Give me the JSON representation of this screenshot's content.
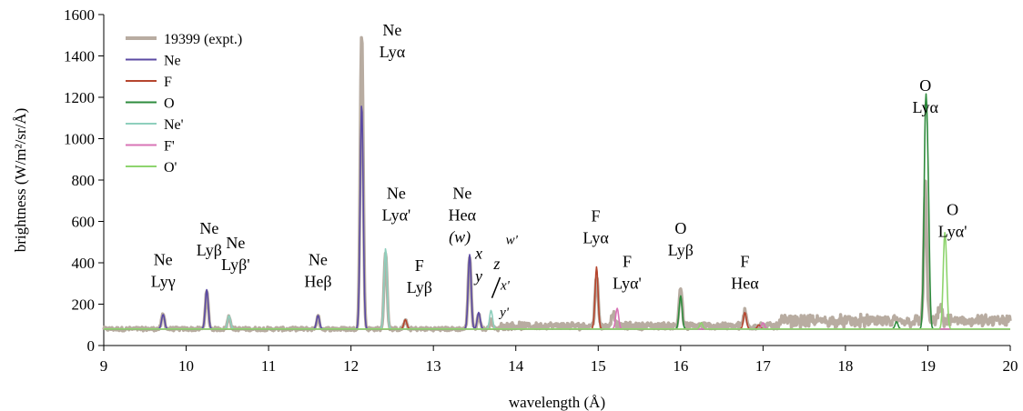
{
  "chart_data": {
    "type": "line",
    "title": "",
    "xlabel": "wavelength (Å)",
    "ylabel": "brightness (W/m²/sr/Å)",
    "xlim": [
      9,
      20
    ],
    "ylim": [
      0,
      1600
    ],
    "xticks": [
      9,
      10,
      11,
      12,
      13,
      14,
      15,
      16,
      17,
      18,
      19,
      20
    ],
    "yticks": [
      0,
      200,
      400,
      600,
      800,
      1000,
      1200,
      1400,
      1600
    ],
    "grid": false,
    "legend_position": "top-left",
    "baseline": 80,
    "series": [
      {
        "name": "19399 (expt.)",
        "color": "#b8aca1",
        "width": 3.5,
        "peaks": [
          [
            9.72,
            150
          ],
          [
            10.25,
            260
          ],
          [
            10.52,
            140
          ],
          [
            11.6,
            140
          ],
          [
            12.13,
            1510
          ],
          [
            12.42,
            450
          ],
          [
            12.66,
            120
          ],
          [
            13.44,
            430
          ],
          [
            13.55,
            150
          ],
          [
            13.7,
            120
          ],
          [
            14.98,
            330
          ],
          [
            15.18,
            150
          ],
          [
            16.0,
            270
          ],
          [
            16.78,
            150
          ],
          [
            18.97,
            730
          ],
          [
            19.15,
            150
          ]
        ],
        "noise": true
      },
      {
        "name": "Ne",
        "color": "#5b4aa3",
        "width": 1.6,
        "peaks": [
          [
            9.72,
            150
          ],
          [
            10.25,
            270
          ],
          [
            11.6,
            145
          ],
          [
            12.13,
            1170
          ],
          [
            13.44,
            440
          ],
          [
            13.55,
            160
          ]
        ]
      },
      {
        "name": "F",
        "color": "#b5452e",
        "width": 1.6,
        "peaks": [
          [
            12.66,
            125
          ],
          [
            14.98,
            380
          ],
          [
            16.78,
            160
          ],
          [
            16.95,
            100
          ]
        ]
      },
      {
        "name": "O",
        "color": "#2e8b3d",
        "width": 1.6,
        "peaks": [
          [
            16.0,
            240
          ],
          [
            18.62,
            115
          ],
          [
            18.97,
            1000
          ],
          [
            19.0,
            720
          ]
        ]
      },
      {
        "name": "Ne'",
        "color": "#8fcfbd",
        "width": 1.6,
        "peaks": [
          [
            10.52,
            145
          ],
          [
            12.42,
            470
          ],
          [
            13.7,
            170
          ]
        ]
      },
      {
        "name": "F'",
        "color": "#d874b6",
        "width": 1.6,
        "peaks": [
          [
            15.23,
            180
          ],
          [
            17.0,
            110
          ]
        ]
      },
      {
        "name": "O'",
        "color": "#8ed46e",
        "width": 1.6,
        "peaks": [
          [
            16.25,
            110
          ],
          [
            19.2,
            400
          ],
          [
            19.22,
            300
          ]
        ]
      }
    ],
    "annotations": [
      {
        "id": "ne-lyg",
        "lines": [
          "Ne",
          "Lyγ"
        ],
        "x": 9.72,
        "y": 390
      },
      {
        "id": "ne-lyb",
        "lines": [
          "Ne",
          "Lyβ"
        ],
        "x": 10.28,
        "y": 540
      },
      {
        "id": "ne-lyb-prime",
        "lines": [
          "Ne",
          "Lyβ'"
        ],
        "x": 10.6,
        "y": 470
      },
      {
        "id": "ne-heb",
        "lines": [
          "Ne",
          "Heβ"
        ],
        "x": 11.6,
        "y": 390
      },
      {
        "id": "ne-lya",
        "lines": [
          "Ne",
          "Lyα"
        ],
        "x": 12.5,
        "y": 1500
      },
      {
        "id": "ne-lya-prime",
        "lines": [
          "Ne",
          "Lyα'"
        ],
        "x": 12.55,
        "y": 710
      },
      {
        "id": "f-lyb",
        "lines": [
          "F",
          "Lyβ"
        ],
        "x": 12.83,
        "y": 360
      },
      {
        "id": "ne-hea",
        "lines": [
          "Ne",
          "Heα"
        ],
        "x": 13.35,
        "y": 710
      },
      {
        "id": "f-lya",
        "lines": [
          "F",
          "Lyα"
        ],
        "x": 14.97,
        "y": 600
      },
      {
        "id": "f-lya-prime",
        "lines": [
          "F",
          "Lyα'"
        ],
        "x": 15.35,
        "y": 380
      },
      {
        "id": "o-lyb",
        "lines": [
          "O",
          "Lyβ"
        ],
        "x": 16.0,
        "y": 540
      },
      {
        "id": "f-hea",
        "lines": [
          "F",
          "Heα"
        ],
        "x": 16.78,
        "y": 380
      },
      {
        "id": "o-lya",
        "lines": [
          "O",
          "Lyα"
        ],
        "x": 18.97,
        "y": 1230
      },
      {
        "id": "o-lya-prime",
        "lines": [
          "O",
          "Lyα'"
        ],
        "x": 19.3,
        "y": 630
      }
    ],
    "line_labels": [
      {
        "id": "w",
        "text": "(w)",
        "x": 13.32,
        "y": 500
      },
      {
        "id": "x",
        "text": "x",
        "x": 13.55,
        "y": 420
      },
      {
        "id": "y",
        "text": "y",
        "x": 13.55,
        "y": 310
      },
      {
        "id": "z",
        "text": "z",
        "x": 13.77,
        "y": 370
      },
      {
        "id": "w-prime",
        "text": "w'",
        "x": 13.95,
        "y": 490
      },
      {
        "id": "x-prime",
        "text": "x'",
        "x": 13.87,
        "y": 270
      },
      {
        "id": "y-prime",
        "text": "y'",
        "x": 13.86,
        "y": 140
      }
    ]
  }
}
